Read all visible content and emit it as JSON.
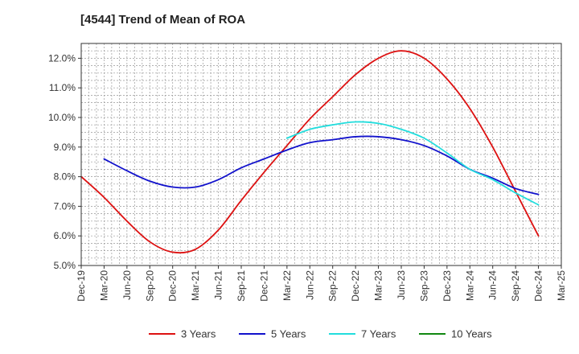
{
  "chart_data": {
    "type": "line",
    "title": "[4544]  Trend of Mean of ROA",
    "xlabel": "",
    "ylabel": "",
    "ylim": [
      5.0,
      12.5
    ],
    "yticks": [
      5.0,
      6.0,
      7.0,
      8.0,
      9.0,
      10.0,
      11.0,
      12.0
    ],
    "ytick_labels": [
      "5.0%",
      "6.0%",
      "7.0%",
      "8.0%",
      "9.0%",
      "10.0%",
      "11.0%",
      "12.0%"
    ],
    "categories": [
      "Dec-19",
      "Mar-20",
      "Jun-20",
      "Sep-20",
      "Dec-20",
      "Mar-21",
      "Jun-21",
      "Sep-21",
      "Dec-21",
      "Mar-22",
      "Jun-22",
      "Sep-22",
      "Dec-22",
      "Mar-23",
      "Jun-23",
      "Sep-23",
      "Dec-23",
      "Mar-24",
      "Jun-24",
      "Sep-24",
      "Dec-24",
      "Mar-25"
    ],
    "grid": true,
    "legend_position": "bottom",
    "series": [
      {
        "name": "3 Years",
        "color": "#dd1111",
        "values": [
          8.0,
          7.3,
          6.5,
          5.8,
          5.45,
          5.55,
          6.2,
          7.2,
          8.15,
          9.05,
          9.95,
          10.7,
          11.45,
          12.0,
          12.25,
          12.0,
          11.3,
          10.3,
          9.0,
          7.5,
          6.0,
          null
        ]
      },
      {
        "name": "5 Years",
        "color": "#1111cc",
        "values": [
          null,
          8.6,
          8.2,
          7.85,
          7.65,
          7.65,
          7.9,
          8.3,
          8.6,
          8.9,
          9.15,
          9.25,
          9.35,
          9.35,
          9.25,
          9.05,
          8.7,
          8.25,
          7.95,
          7.6,
          7.4,
          null
        ]
      },
      {
        "name": "7 Years",
        "color": "#22dddd",
        "values": [
          null,
          null,
          null,
          null,
          null,
          null,
          null,
          null,
          null,
          9.3,
          9.6,
          9.75,
          9.85,
          9.8,
          9.6,
          9.3,
          8.8,
          8.25,
          7.9,
          7.45,
          7.05,
          null
        ]
      },
      {
        "name": "10 Years",
        "color": "#118811",
        "values": [
          null,
          null,
          null,
          null,
          null,
          null,
          null,
          null,
          null,
          null,
          null,
          null,
          null,
          null,
          null,
          null,
          null,
          null,
          null,
          null,
          null,
          null
        ]
      }
    ]
  }
}
